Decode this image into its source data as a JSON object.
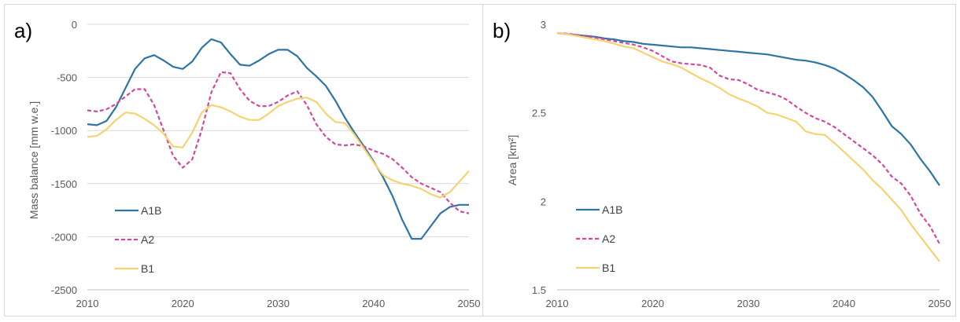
{
  "chart_data": [
    {
      "type": "line",
      "panel_label": "a)",
      "ylabel": "Mass balance  [mm w.e.]",
      "xlim": [
        2010,
        2050
      ],
      "ylim": [
        -2500,
        0
      ],
      "x_ticks": [
        "2010",
        "2020",
        "2030",
        "2040",
        "2050"
      ],
      "y_ticks": [
        "0",
        "-500",
        "-1000",
        "-1500",
        "-2000",
        "-2500"
      ],
      "grid": "horizontal",
      "legend_position": "bottom-left",
      "x": [
        2010,
        2011,
        2012,
        2013,
        2014,
        2015,
        2016,
        2017,
        2018,
        2019,
        2020,
        2021,
        2022,
        2023,
        2024,
        2025,
        2026,
        2027,
        2028,
        2029,
        2030,
        2031,
        2032,
        2033,
        2034,
        2035,
        2036,
        2037,
        2038,
        2039,
        2040,
        2041,
        2042,
        2043,
        2044,
        2045,
        2046,
        2047,
        2048,
        2049,
        2050
      ],
      "series": [
        {
          "name": "A1B",
          "color": "#2e75a3",
          "dash": "solid",
          "values": [
            -940,
            -950,
            -910,
            -780,
            -600,
            -420,
            -320,
            -290,
            -340,
            -400,
            -420,
            -350,
            -220,
            -140,
            -170,
            -280,
            -380,
            -390,
            -340,
            -280,
            -240,
            -240,
            -300,
            -410,
            -490,
            -580,
            -720,
            -880,
            -1020,
            -1150,
            -1290,
            -1440,
            -1620,
            -1840,
            -2020,
            -2020,
            -1900,
            -1780,
            -1720,
            -1700,
            -1700
          ]
        },
        {
          "name": "A2",
          "color": "#d4489c",
          "dash": "dashed",
          "values": [
            -810,
            -820,
            -800,
            -750,
            -680,
            -610,
            -610,
            -760,
            -1000,
            -1240,
            -1350,
            -1270,
            -990,
            -640,
            -450,
            -460,
            -610,
            -720,
            -770,
            -770,
            -730,
            -670,
            -630,
            -760,
            -940,
            -1060,
            -1130,
            -1140,
            -1130,
            -1150,
            -1190,
            -1220,
            -1270,
            -1350,
            -1440,
            -1500,
            -1540,
            -1580,
            -1680,
            -1760,
            -1780
          ]
        },
        {
          "name": "B1",
          "color": "#f5d272",
          "dash": "solid",
          "values": [
            -1060,
            -1050,
            -990,
            -900,
            -830,
            -840,
            -890,
            -950,
            -1030,
            -1150,
            -1160,
            -1020,
            -830,
            -760,
            -780,
            -820,
            -870,
            -900,
            -900,
            -840,
            -770,
            -730,
            -700,
            -690,
            -730,
            -840,
            -920,
            -930,
            -1040,
            -1170,
            -1300,
            -1420,
            -1470,
            -1500,
            -1520,
            -1550,
            -1600,
            -1630,
            -1580,
            -1480,
            -1380
          ]
        }
      ]
    },
    {
      "type": "line",
      "panel_label": "b)",
      "ylabel": "Area [km²]",
      "xlim": [
        2010,
        2050
      ],
      "ylim": [
        1.5,
        3
      ],
      "x_ticks": [
        "2010",
        "2020",
        "2030",
        "2040",
        "2050"
      ],
      "y_ticks": [
        "3",
        "2.5",
        "2",
        "1.5"
      ],
      "grid": "none",
      "legend_position": "bottom-left",
      "x": [
        2010,
        2011,
        2012,
        2013,
        2014,
        2015,
        2016,
        2017,
        2018,
        2019,
        2020,
        2021,
        2022,
        2023,
        2024,
        2025,
        2026,
        2027,
        2028,
        2029,
        2030,
        2031,
        2032,
        2033,
        2034,
        2035,
        2036,
        2037,
        2038,
        2039,
        2040,
        2041,
        2042,
        2043,
        2044,
        2045,
        2046,
        2047,
        2048,
        2049,
        2050
      ],
      "series": [
        {
          "name": "A1B",
          "color": "#2e75a3",
          "dash": "solid",
          "values": [
            2.95,
            2.945,
            2.94,
            2.935,
            2.93,
            2.92,
            2.915,
            2.905,
            2.9,
            2.89,
            2.885,
            2.88,
            2.875,
            2.87,
            2.87,
            2.865,
            2.86,
            2.855,
            2.85,
            2.845,
            2.84,
            2.835,
            2.83,
            2.82,
            2.81,
            2.8,
            2.795,
            2.785,
            2.77,
            2.75,
            2.72,
            2.685,
            2.645,
            2.59,
            2.51,
            2.425,
            2.38,
            2.32,
            2.24,
            2.17,
            2.09
          ]
        },
        {
          "name": "A2",
          "color": "#d4489c",
          "dash": "dashed",
          "values": [
            2.95,
            2.948,
            2.94,
            2.932,
            2.925,
            2.915,
            2.905,
            2.895,
            2.885,
            2.87,
            2.85,
            2.82,
            2.79,
            2.78,
            2.775,
            2.77,
            2.755,
            2.71,
            2.69,
            2.685,
            2.66,
            2.63,
            2.615,
            2.6,
            2.575,
            2.535,
            2.5,
            2.47,
            2.45,
            2.42,
            2.38,
            2.34,
            2.3,
            2.26,
            2.21,
            2.14,
            2.1,
            2.03,
            1.93,
            1.86,
            1.76
          ]
        },
        {
          "name": "B1",
          "color": "#f5d272",
          "dash": "solid",
          "values": [
            2.95,
            2.945,
            2.935,
            2.925,
            2.915,
            2.905,
            2.89,
            2.875,
            2.865,
            2.84,
            2.815,
            2.79,
            2.775,
            2.755,
            2.725,
            2.695,
            2.67,
            2.64,
            2.605,
            2.58,
            2.56,
            2.535,
            2.5,
            2.49,
            2.47,
            2.45,
            2.395,
            2.38,
            2.375,
            2.33,
            2.28,
            2.23,
            2.18,
            2.12,
            2.07,
            2.01,
            1.95,
            1.87,
            1.8,
            1.73,
            1.66
          ]
        }
      ]
    }
  ]
}
